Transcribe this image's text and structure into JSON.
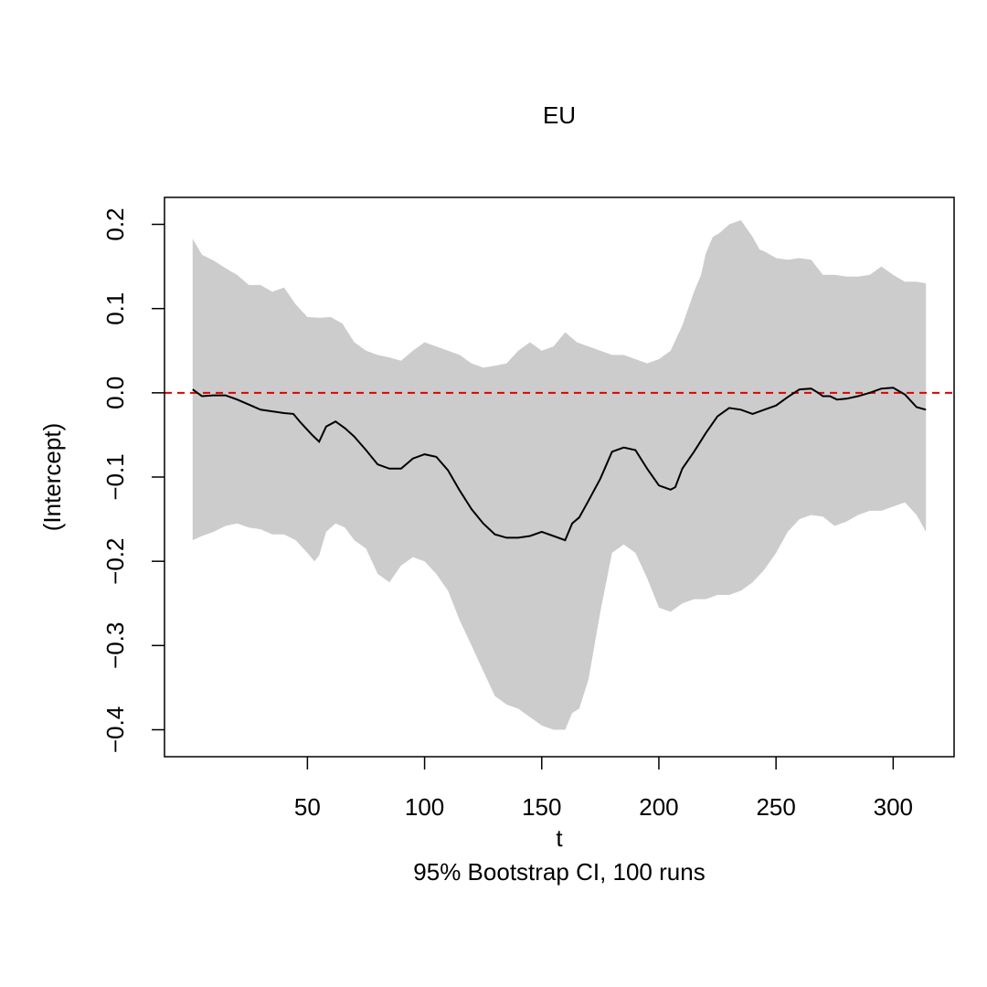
{
  "chart_data": {
    "type": "area",
    "title": "EU",
    "xlabel": "t",
    "ylabel": "(Intercept)",
    "subtitle": "95% Bootstrap CI, 100 runs",
    "xlim": [
      -11,
      326
    ],
    "ylim": [
      -0.432,
      0.232
    ],
    "xticks": [
      50,
      100,
      150,
      200,
      250,
      300
    ],
    "xtick_labels": [
      "50",
      "100",
      "150",
      "200",
      "250",
      "300"
    ],
    "yticks": [
      -0.4,
      -0.3,
      -0.2,
      -0.1,
      0.0,
      0.1,
      0.2
    ],
    "ytick_labels": [
      "−0.4",
      "−0.3",
      "−0.2",
      "−0.1",
      "0.0",
      "0.1",
      "0.2"
    ],
    "reference_line": {
      "y": 0.0,
      "style": "dashed",
      "color": "#e00000"
    },
    "grid": false,
    "colors": {
      "band": "#cccccc",
      "estimate": "#000000"
    },
    "series": [
      {
        "role": "estimate",
        "x": [
          1,
          5,
          10,
          15,
          20,
          25,
          30,
          35,
          40,
          44,
          47,
          52,
          55,
          58,
          62,
          66,
          70,
          75,
          80,
          85,
          90,
          95,
          100,
          105,
          110,
          115,
          120,
          125,
          130,
          135,
          140,
          145,
          150,
          155,
          160,
          163,
          166,
          170,
          175,
          180,
          185,
          190,
          195,
          200,
          205,
          207,
          210,
          215,
          220,
          225,
          230,
          235,
          240,
          245,
          250,
          255,
          260,
          265,
          268,
          270,
          273,
          276,
          280,
          285,
          290,
          295,
          300,
          305,
          310,
          314
        ],
        "y": [
          0.004,
          -0.004,
          -0.003,
          -0.003,
          -0.008,
          -0.014,
          -0.02,
          -0.022,
          -0.024,
          -0.025,
          -0.035,
          -0.05,
          -0.058,
          -0.04,
          -0.034,
          -0.042,
          -0.052,
          -0.068,
          -0.085,
          -0.09,
          -0.09,
          -0.078,
          -0.073,
          -0.076,
          -0.092,
          -0.116,
          -0.138,
          -0.155,
          -0.168,
          -0.172,
          -0.172,
          -0.17,
          -0.165,
          -0.17,
          -0.175,
          -0.155,
          -0.148,
          -0.128,
          -0.102,
          -0.07,
          -0.065,
          -0.068,
          -0.09,
          -0.11,
          -0.115,
          -0.112,
          -0.09,
          -0.07,
          -0.048,
          -0.028,
          -0.018,
          -0.02,
          -0.025,
          -0.02,
          -0.015,
          -0.005,
          0.004,
          0.005,
          0.0,
          -0.004,
          -0.004,
          -0.008,
          -0.007,
          -0.004,
          0.0,
          0.005,
          0.006,
          -0.002,
          -0.017,
          -0.02
        ]
      },
      {
        "role": "upper_ci",
        "x": [
          1,
          5,
          10,
          15,
          20,
          25,
          30,
          35,
          40,
          45,
          50,
          55,
          60,
          65,
          70,
          75,
          80,
          85,
          90,
          95,
          100,
          105,
          110,
          115,
          120,
          125,
          130,
          135,
          140,
          145,
          150,
          155,
          160,
          165,
          170,
          175,
          180,
          185,
          190,
          195,
          200,
          205,
          210,
          215,
          218,
          220,
          223,
          226,
          230,
          235,
          240,
          243,
          245,
          250,
          255,
          260,
          265,
          270,
          275,
          280,
          285,
          290,
          295,
          300,
          305,
          310,
          314
        ],
        "y": [
          0.183,
          0.164,
          0.157,
          0.148,
          0.14,
          0.128,
          0.128,
          0.12,
          0.125,
          0.105,
          0.09,
          0.089,
          0.09,
          0.082,
          0.06,
          0.05,
          0.045,
          0.042,
          0.038,
          0.05,
          0.06,
          0.055,
          0.05,
          0.045,
          0.035,
          0.03,
          0.032,
          0.035,
          0.05,
          0.06,
          0.05,
          0.055,
          0.072,
          0.06,
          0.055,
          0.05,
          0.045,
          0.045,
          0.04,
          0.035,
          0.04,
          0.05,
          0.08,
          0.12,
          0.14,
          0.165,
          0.185,
          0.19,
          0.2,
          0.205,
          0.185,
          0.17,
          0.168,
          0.16,
          0.158,
          0.16,
          0.158,
          0.14,
          0.14,
          0.138,
          0.138,
          0.14,
          0.15,
          0.14,
          0.132,
          0.132,
          0.13
        ]
      },
      {
        "role": "lower_ci",
        "x": [
          1,
          5,
          10,
          15,
          20,
          25,
          30,
          35,
          40,
          45,
          50,
          53,
          55,
          58,
          62,
          66,
          70,
          75,
          80,
          85,
          90,
          95,
          100,
          105,
          110,
          115,
          120,
          125,
          130,
          135,
          140,
          145,
          150,
          155,
          160,
          163,
          166,
          170,
          175,
          180,
          185,
          190,
          195,
          200,
          205,
          210,
          215,
          220,
          225,
          230,
          235,
          240,
          245,
          250,
          255,
          260,
          265,
          270,
          275,
          280,
          285,
          290,
          295,
          300,
          305,
          310,
          314
        ],
        "y": [
          -0.175,
          -0.17,
          -0.165,
          -0.158,
          -0.155,
          -0.16,
          -0.162,
          -0.168,
          -0.168,
          -0.175,
          -0.19,
          -0.2,
          -0.193,
          -0.165,
          -0.155,
          -0.16,
          -0.175,
          -0.185,
          -0.215,
          -0.225,
          -0.205,
          -0.195,
          -0.2,
          -0.215,
          -0.235,
          -0.27,
          -0.3,
          -0.33,
          -0.36,
          -0.37,
          -0.375,
          -0.385,
          -0.395,
          -0.4,
          -0.4,
          -0.38,
          -0.375,
          -0.34,
          -0.26,
          -0.19,
          -0.18,
          -0.19,
          -0.22,
          -0.255,
          -0.26,
          -0.25,
          -0.245,
          -0.245,
          -0.24,
          -0.24,
          -0.235,
          -0.225,
          -0.21,
          -0.19,
          -0.165,
          -0.15,
          -0.145,
          -0.147,
          -0.158,
          -0.153,
          -0.145,
          -0.14,
          -0.14,
          -0.135,
          -0.13,
          -0.145,
          -0.165
        ]
      }
    ]
  }
}
